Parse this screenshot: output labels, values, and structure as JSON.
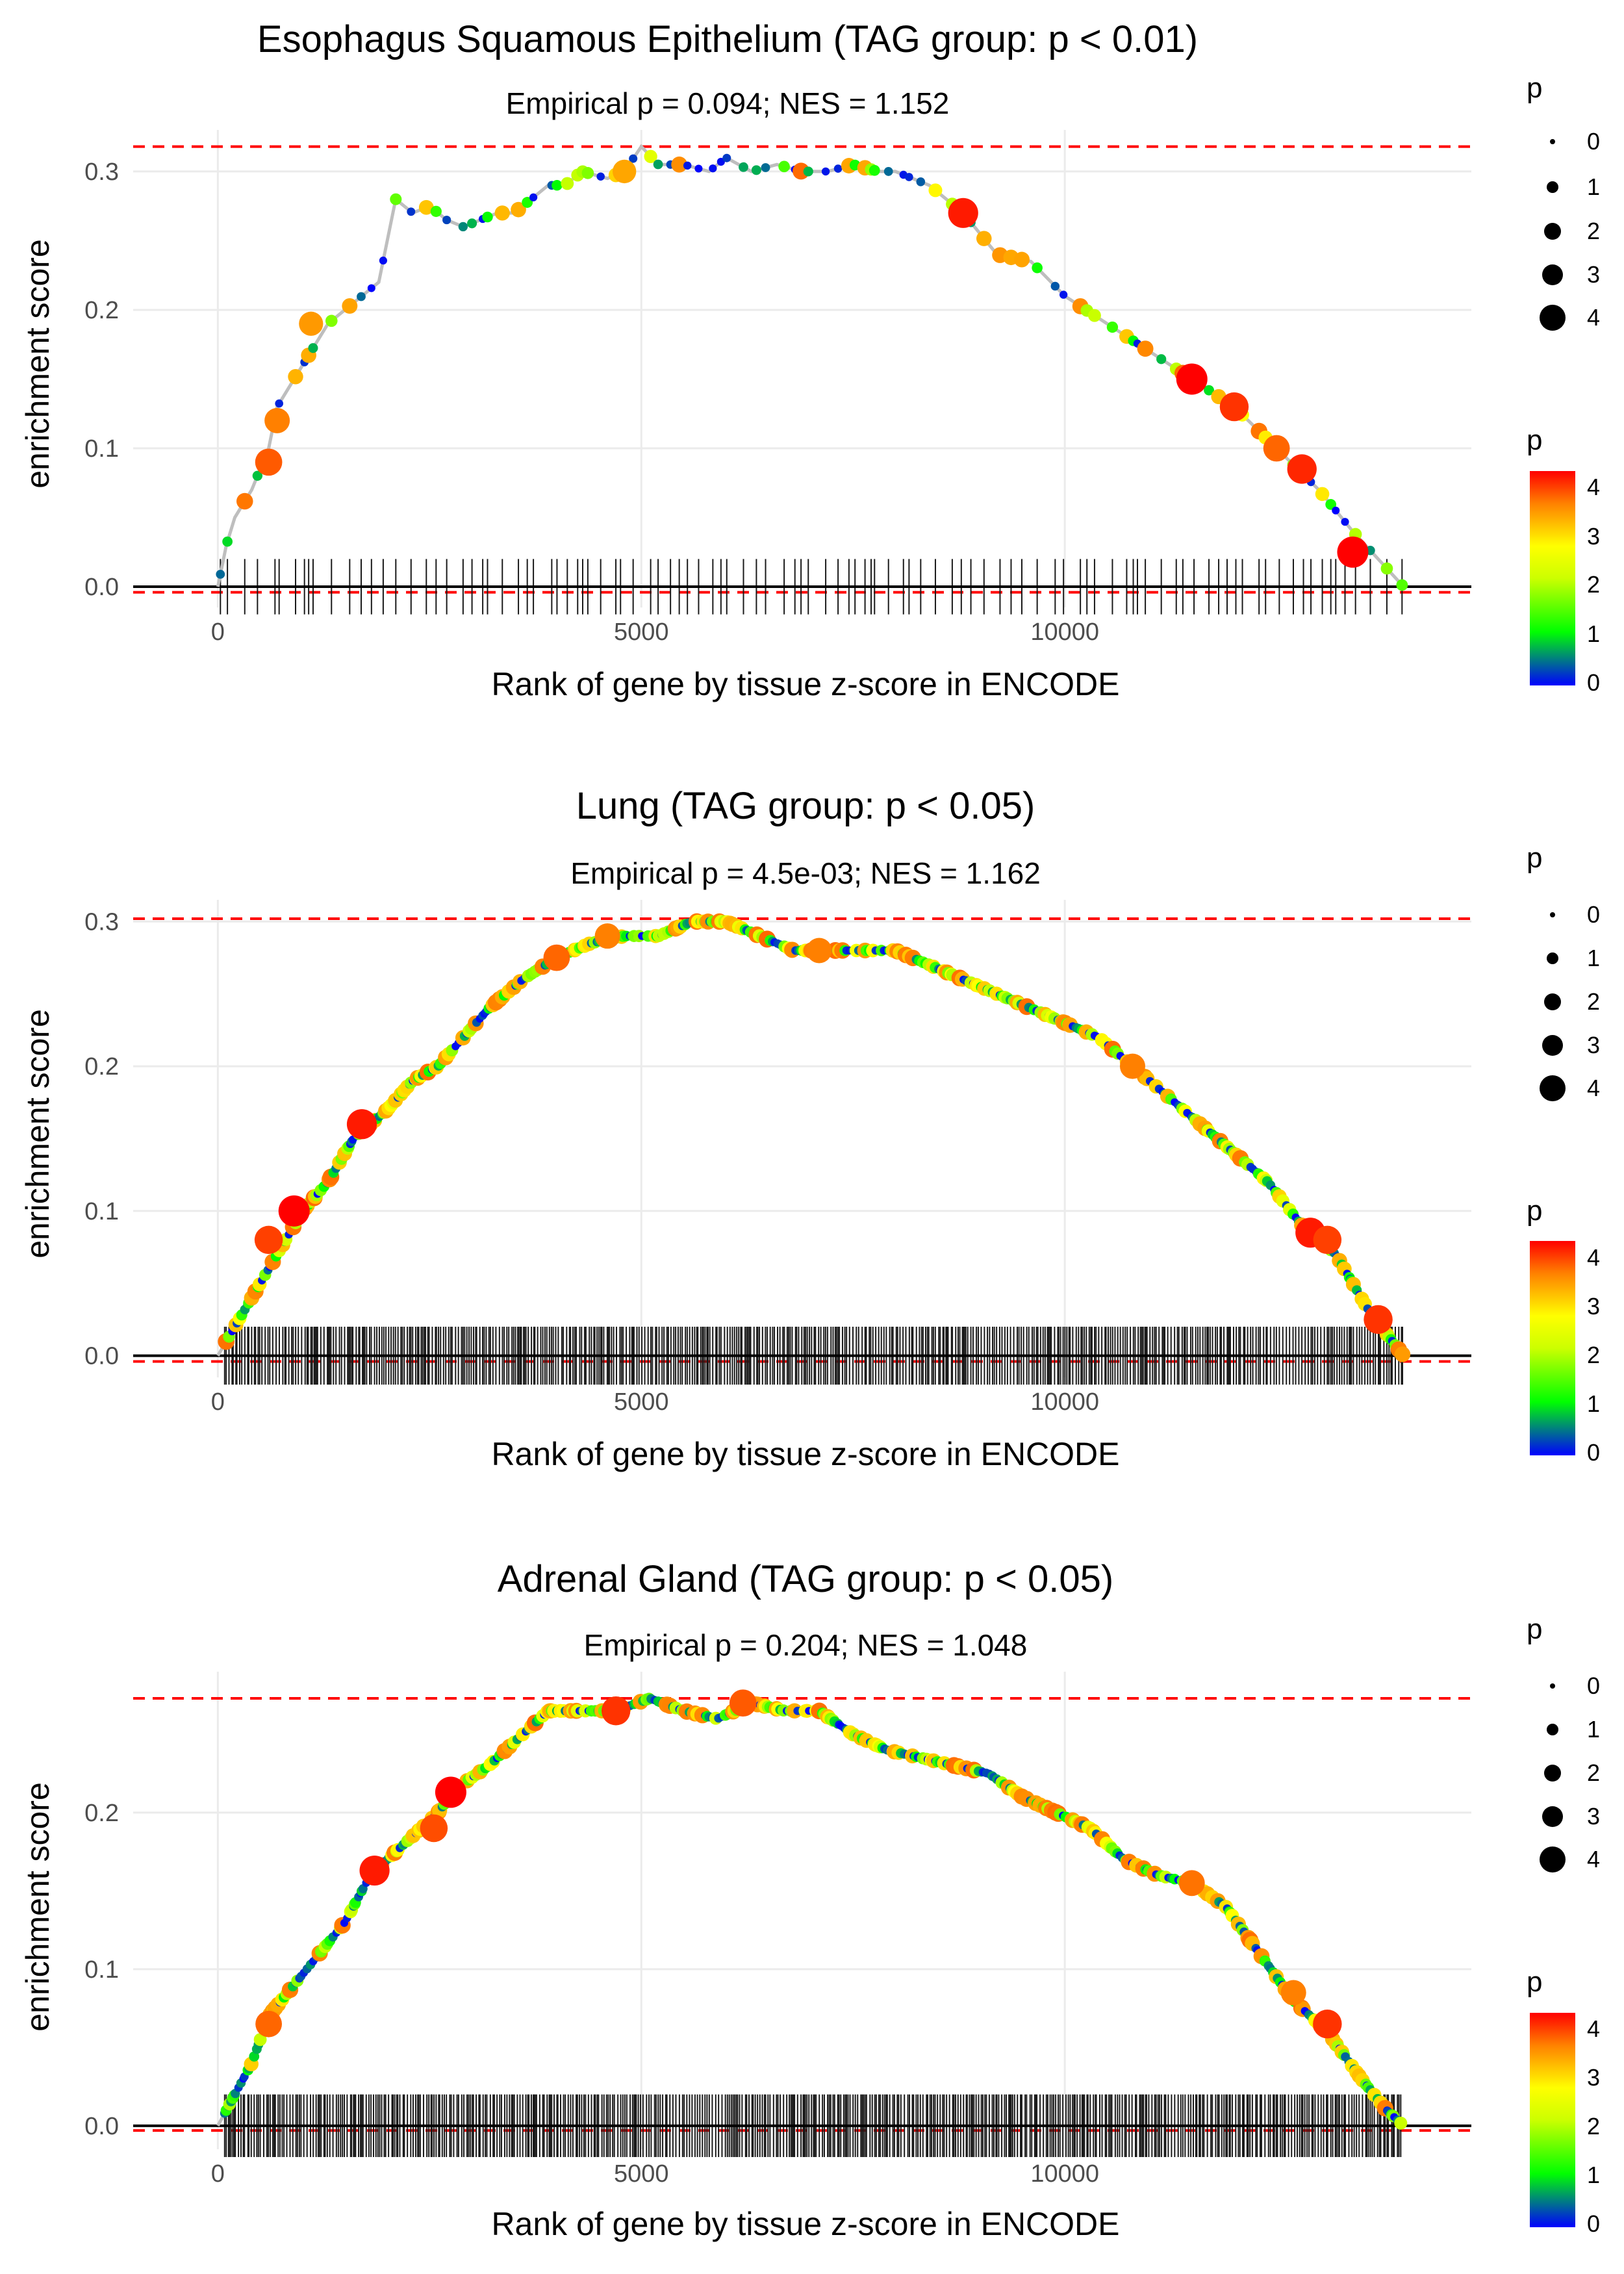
{
  "chart_data": [
    {
      "type": "line",
      "title": "Esophagus Squamous Epithelium (TAG group: p < 0.01)",
      "subtitle": "Empirical p = 0.094; NES = 1.152",
      "xlabel": "Rank of gene by tissue z-score in ENCODE",
      "ylabel": "enrichment score",
      "xlim": [
        -1000,
        14800
      ],
      "ylim": [
        -0.015,
        0.33
      ],
      "x_ticks": [
        0,
        5000,
        10000
      ],
      "y_ticks": [
        0.0,
        0.1,
        0.2,
        0.3
      ],
      "x_tick_labels": [
        "0",
        "5000",
        "10000"
      ],
      "y_tick_labels": [
        "0.0",
        "0.1",
        "0.2",
        "0.3"
      ],
      "max_es": 0.318,
      "min_es": -0.004,
      "n_genes": 14000,
      "hit_density": "sparse",
      "curve": [
        [
          0,
          0.0
        ],
        [
          100,
          0.03
        ],
        [
          200,
          0.05
        ],
        [
          400,
          0.07
        ],
        [
          600,
          0.1
        ],
        [
          700,
          0.13
        ],
        [
          900,
          0.15
        ],
        [
          1100,
          0.17
        ],
        [
          1300,
          0.19
        ],
        [
          1500,
          0.2
        ],
        [
          1700,
          0.21
        ],
        [
          1900,
          0.22
        ],
        [
          2100,
          0.28
        ],
        [
          2300,
          0.27
        ],
        [
          2500,
          0.275
        ],
        [
          2700,
          0.265
        ],
        [
          2900,
          0.26
        ],
        [
          3100,
          0.265
        ],
        [
          3300,
          0.27
        ],
        [
          3500,
          0.27
        ],
        [
          3700,
          0.28
        ],
        [
          3900,
          0.29
        ],
        [
          4100,
          0.29
        ],
        [
          4300,
          0.3
        ],
        [
          4600,
          0.295
        ],
        [
          4800,
          0.3
        ],
        [
          5000,
          0.318
        ],
        [
          5200,
          0.305
        ],
        [
          5500,
          0.305
        ],
        [
          5800,
          0.3
        ],
        [
          6000,
          0.31
        ],
        [
          6300,
          0.3
        ],
        [
          6600,
          0.305
        ],
        [
          6900,
          0.3
        ],
        [
          7200,
          0.3
        ],
        [
          7500,
          0.305
        ],
        [
          7800,
          0.3
        ],
        [
          8000,
          0.3
        ],
        [
          8400,
          0.29
        ],
        [
          8800,
          0.27
        ],
        [
          9200,
          0.24
        ],
        [
          9600,
          0.235
        ],
        [
          10000,
          0.21
        ],
        [
          10500,
          0.19
        ],
        [
          11000,
          0.17
        ],
        [
          11500,
          0.15
        ],
        [
          12000,
          0.13
        ],
        [
          12500,
          0.1
        ],
        [
          13000,
          0.07
        ],
        [
          13400,
          0.04
        ],
        [
          13700,
          0.02
        ],
        [
          14000,
          0.0
        ]
      ],
      "highlights": [
        [
          600,
          0.09,
          3.3
        ],
        [
          700,
          0.12,
          3.0
        ],
        [
          1100,
          0.19,
          2.8
        ],
        [
          4800,
          0.3,
          2.7
        ],
        [
          8800,
          0.27,
          3.8
        ],
        [
          11500,
          0.15,
          4.0
        ],
        [
          12000,
          0.13,
          3.6
        ],
        [
          12500,
          0.1,
          3.2
        ],
        [
          12800,
          0.085,
          3.7
        ],
        [
          13400,
          0.025,
          4.0
        ]
      ],
      "legend_size": {
        "title": "p",
        "labels": [
          "0",
          "1",
          "2",
          "3",
          "4"
        ]
      },
      "legend_color": {
        "title": "p",
        "labels": [
          "4",
          "3",
          "2",
          "1",
          "0"
        ]
      }
    },
    {
      "type": "line",
      "title": "Lung (TAG group: p < 0.05)",
      "subtitle": "Empirical p = 4.5e-03; NES = 1.162",
      "xlabel": "Rank of gene by tissue z-score in ENCODE",
      "ylabel": "enrichment score",
      "xlim": [
        -1000,
        14800
      ],
      "ylim": [
        -0.015,
        0.315
      ],
      "x_ticks": [
        0,
        5000,
        10000
      ],
      "y_ticks": [
        0.0,
        0.1,
        0.2,
        0.3
      ],
      "x_tick_labels": [
        "0",
        "5000",
        "10000"
      ],
      "y_tick_labels": [
        "0.0",
        "0.1",
        "0.2",
        "0.3"
      ],
      "max_es": 0.302,
      "min_es": -0.004,
      "n_genes": 14000,
      "hit_density": "dense",
      "curve": [
        [
          0,
          0.0
        ],
        [
          200,
          0.02
        ],
        [
          400,
          0.04
        ],
        [
          600,
          0.06
        ],
        [
          800,
          0.08
        ],
        [
          1000,
          0.1
        ],
        [
          1300,
          0.12
        ],
        [
          1600,
          0.15
        ],
        [
          2000,
          0.17
        ],
        [
          2300,
          0.19
        ],
        [
          2600,
          0.2
        ],
        [
          2900,
          0.22
        ],
        [
          3200,
          0.24
        ],
        [
          3600,
          0.26
        ],
        [
          4000,
          0.275
        ],
        [
          4400,
          0.285
        ],
        [
          4800,
          0.29
        ],
        [
          5200,
          0.29
        ],
        [
          5600,
          0.3
        ],
        [
          6000,
          0.3
        ],
        [
          6400,
          0.29
        ],
        [
          6800,
          0.28
        ],
        [
          7200,
          0.28
        ],
        [
          7600,
          0.28
        ],
        [
          8000,
          0.28
        ],
        [
          8400,
          0.27
        ],
        [
          8800,
          0.26
        ],
        [
          9200,
          0.25
        ],
        [
          9600,
          0.24
        ],
        [
          10000,
          0.23
        ],
        [
          10400,
          0.22
        ],
        [
          10800,
          0.2
        ],
        [
          11200,
          0.18
        ],
        [
          11600,
          0.16
        ],
        [
          12000,
          0.14
        ],
        [
          12400,
          0.12
        ],
        [
          12800,
          0.09
        ],
        [
          13200,
          0.07
        ],
        [
          13600,
          0.03
        ],
        [
          14000,
          0.0
        ]
      ],
      "highlights": [
        [
          900,
          0.1,
          4.0
        ],
        [
          600,
          0.08,
          3.5
        ],
        [
          1700,
          0.16,
          3.8
        ],
        [
          4000,
          0.275,
          3.2
        ],
        [
          4600,
          0.29,
          3.0
        ],
        [
          7100,
          0.28,
          3.0
        ],
        [
          12900,
          0.085,
          3.8
        ],
        [
          13100,
          0.08,
          3.5
        ],
        [
          13700,
          0.025,
          3.6
        ],
        [
          10800,
          0.2,
          3.0
        ]
      ],
      "legend_size": {
        "title": "p",
        "labels": [
          "0",
          "1",
          "2",
          "3",
          "4"
        ]
      },
      "legend_color": {
        "title": "p",
        "labels": [
          "4",
          "3",
          "2",
          "1",
          "0"
        ]
      }
    },
    {
      "type": "line",
      "title": "Adrenal Gland (TAG group: p < 0.05)",
      "subtitle": "Empirical p = 0.204; NES = 1.048",
      "xlabel": "Rank of gene by tissue z-score in ENCODE",
      "ylabel": "enrichment score",
      "xlim": [
        -1000,
        14800
      ],
      "ylim": [
        -0.015,
        0.29
      ],
      "x_ticks": [
        0,
        5000,
        10000
      ],
      "y_ticks": [
        0.0,
        0.1,
        0.2
      ],
      "x_tick_labels": [
        "0",
        "5000",
        "10000"
      ],
      "y_tick_labels": [
        "0.0",
        "0.1",
        "0.2"
      ],
      "max_es": 0.273,
      "min_es": -0.003,
      "n_genes": 14000,
      "hit_density": "dense",
      "curve": [
        [
          0,
          0.0
        ],
        [
          200,
          0.02
        ],
        [
          400,
          0.04
        ],
        [
          600,
          0.07
        ],
        [
          900,
          0.09
        ],
        [
          1200,
          0.11
        ],
        [
          1500,
          0.13
        ],
        [
          1800,
          0.16
        ],
        [
          2200,
          0.18
        ],
        [
          2600,
          0.2
        ],
        [
          2800,
          0.215
        ],
        [
          3200,
          0.23
        ],
        [
          3600,
          0.25
        ],
        [
          3900,
          0.265
        ],
        [
          4300,
          0.265
        ],
        [
          4700,
          0.265
        ],
        [
          5100,
          0.273
        ],
        [
          5500,
          0.265
        ],
        [
          5900,
          0.26
        ],
        [
          6300,
          0.27
        ],
        [
          6700,
          0.265
        ],
        [
          7100,
          0.265
        ],
        [
          7500,
          0.25
        ],
        [
          7900,
          0.24
        ],
        [
          8300,
          0.235
        ],
        [
          8700,
          0.23
        ],
        [
          9100,
          0.225
        ],
        [
          9500,
          0.21
        ],
        [
          9900,
          0.2
        ],
        [
          10300,
          0.19
        ],
        [
          10700,
          0.17
        ],
        [
          11100,
          0.16
        ],
        [
          11500,
          0.155
        ],
        [
          11900,
          0.14
        ],
        [
          12300,
          0.11
        ],
        [
          12700,
          0.08
        ],
        [
          13100,
          0.06
        ],
        [
          13500,
          0.03
        ],
        [
          13800,
          0.01
        ],
        [
          14000,
          0.0
        ]
      ],
      "highlights": [
        [
          2750,
          0.213,
          4.0
        ],
        [
          1850,
          0.163,
          3.8
        ],
        [
          2550,
          0.19,
          3.4
        ],
        [
          4700,
          0.265,
          3.6
        ],
        [
          6200,
          0.27,
          3.3
        ],
        [
          600,
          0.065,
          3.2
        ],
        [
          11500,
          0.155,
          3.1
        ],
        [
          12700,
          0.085,
          3.0
        ],
        [
          13100,
          0.065,
          3.6
        ]
      ],
      "legend_size": {
        "title": "p",
        "labels": [
          "0",
          "1",
          "2",
          "3",
          "4"
        ]
      },
      "legend_color": {
        "title": "p",
        "labels": [
          "4",
          "3",
          "2",
          "1",
          "0"
        ]
      }
    }
  ],
  "colors": {
    "grid": "#ebebeb",
    "baseline": "#000000",
    "reference_line": "#ff0000",
    "curve": "#bebebe",
    "gradient": [
      "#0000ff",
      "#00ff00",
      "#ffff00",
      "#ff8000",
      "#ff0000"
    ]
  }
}
